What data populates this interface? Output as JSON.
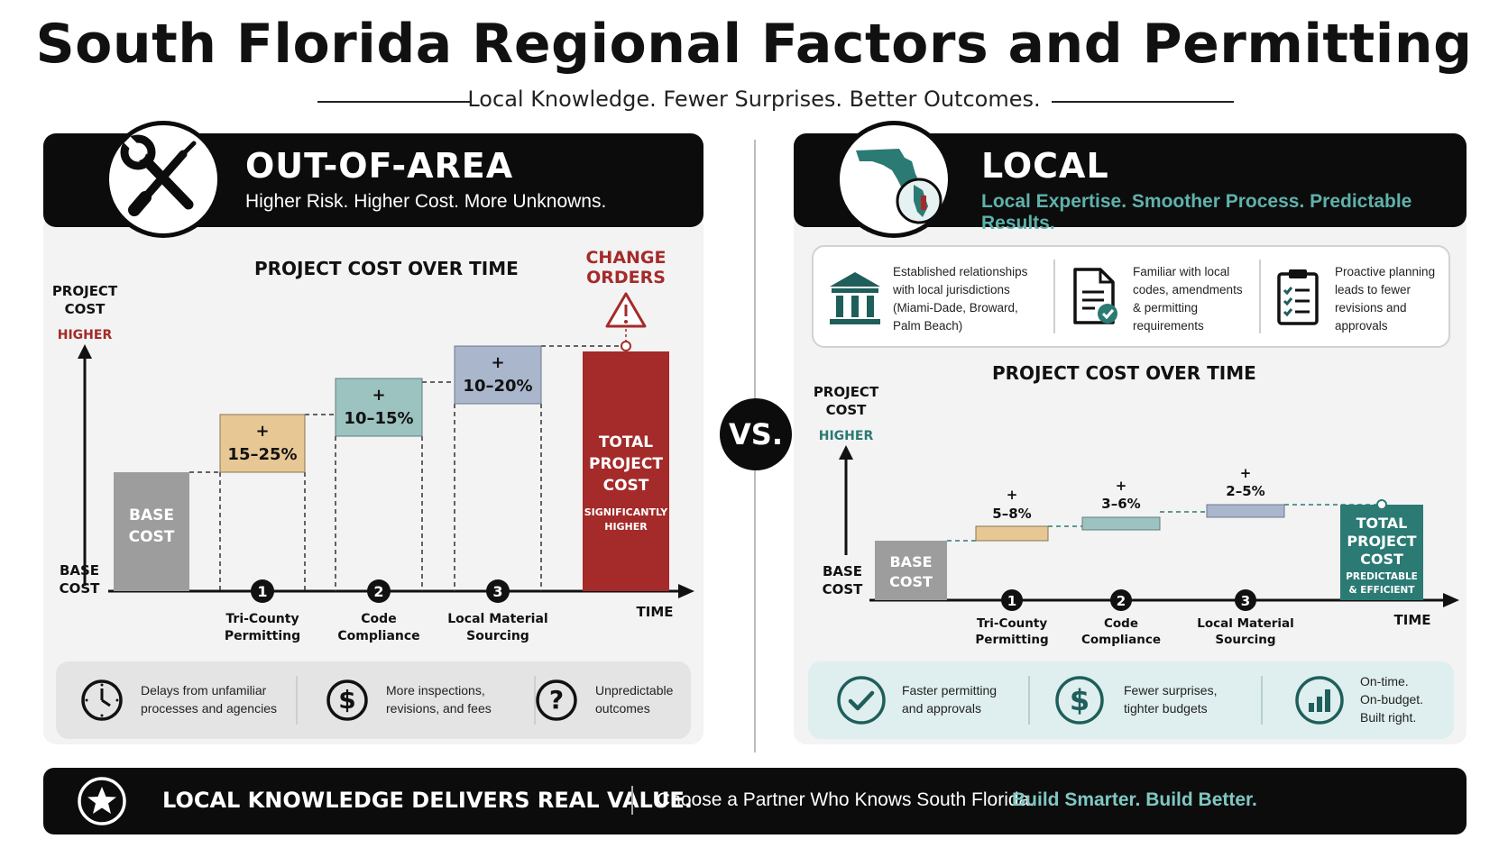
{
  "title": "South Florida Regional Factors and Permitting",
  "subtitle": "Local Knowledge. Fewer Surprises. Better Outcomes.",
  "vs_label": "VS.",
  "colors": {
    "teal": "#2b7a74",
    "red": "#a52a2a",
    "tan": "#e7c894",
    "light_teal": "#9cc3c0",
    "blue_gray": "#a9b6cb",
    "gray": "#9d9d9d"
  },
  "out_of_area": {
    "title": "OUT-OF-AREA",
    "subtitle": "Higher Risk. Higher Cost. More Unknowns.",
    "badge_icon": "wrench-screwdriver-icon",
    "chart": {
      "title": "PROJECT COST OVER TIME",
      "y_label_line1": "PROJECT",
      "y_label_line2": "COST",
      "y_high": "HIGHER",
      "y_base_line1": "BASE",
      "y_base_line2": "COST",
      "x_label": "TIME",
      "base_bar_line1": "BASE",
      "base_bar_line2": "COST",
      "total_bar_line1": "TOTAL",
      "total_bar_line2": "PROJECT",
      "total_bar_line3": "COST",
      "total_bar_note_line1": "SIGNIFICANTLY",
      "total_bar_note_line2": "HIGHER",
      "change_orders_line1": "CHANGE",
      "change_orders_line2": "ORDERS",
      "steps": [
        {
          "num": "1",
          "plus": "+",
          "range": "15–25%",
          "label_line1": "Tri-County",
          "label_line2": "Permitting"
        },
        {
          "num": "2",
          "plus": "+",
          "range": "10–15%",
          "label_line1": "Code",
          "label_line2": "Compliance"
        },
        {
          "num": "3",
          "plus": "+",
          "range": "10–20%",
          "label_line1": "Local Material",
          "label_line2": "Sourcing"
        }
      ]
    },
    "bottom_items": [
      {
        "icon": "clock-icon",
        "line1": "Delays from unfamiliar",
        "line2": "processes and agencies"
      },
      {
        "icon": "dollar-icon",
        "line1": "More inspections,",
        "line2": "revisions, and fees"
      },
      {
        "icon": "question-icon",
        "line1": "Unpredictable",
        "line2": "outcomes"
      }
    ]
  },
  "local": {
    "title": "LOCAL",
    "subtitle": "Local Expertise. Smoother Process. Predictable Results.",
    "badge_icon": "florida-map-icon",
    "top_items": [
      {
        "icon": "courthouse-icon",
        "line1": "Established relationships",
        "line2": "with local jurisdictions",
        "line3": "(Miami-Dade, Broward,",
        "line4": "Palm Beach)"
      },
      {
        "icon": "document-check-icon",
        "line1": "Familiar with local",
        "line2": "codes, amendments",
        "line3": "& permitting",
        "line4": "requirements"
      },
      {
        "icon": "clipboard-checklist-icon",
        "line1": "Proactive planning",
        "line2": "leads to fewer",
        "line3": "revisions and",
        "line4": "approvals"
      }
    ],
    "chart": {
      "title": "PROJECT COST OVER TIME",
      "y_label_line1": "PROJECT",
      "y_label_line2": "COST",
      "y_high": "HIGHER",
      "y_base_line1": "BASE",
      "y_base_line2": "COST",
      "x_label": "TIME",
      "base_bar_line1": "BASE",
      "base_bar_line2": "COST",
      "total_bar_line1": "TOTAL",
      "total_bar_line2": "PROJECT",
      "total_bar_line3": "COST",
      "total_bar_note_line1": "PREDICTABLE",
      "total_bar_note_line2": "& EFFICIENT",
      "steps": [
        {
          "num": "1",
          "plus": "+",
          "range": "5–8%",
          "label_line1": "Tri-County",
          "label_line2": "Permitting"
        },
        {
          "num": "2",
          "plus": "+",
          "range": "3–6%",
          "label_line1": "Code",
          "label_line2": "Compliance"
        },
        {
          "num": "3",
          "plus": "+",
          "range": "2–5%",
          "label_line1": "Local Material",
          "label_line2": "Sourcing"
        }
      ]
    },
    "bottom_items": [
      {
        "icon": "checkmark-circle-icon",
        "line1": "Faster permitting",
        "line2": "and approvals"
      },
      {
        "icon": "dollar-icon",
        "line1": "Fewer surprises,",
        "line2": "tighter budgets"
      },
      {
        "icon": "bar-chart-icon",
        "line1": "On-time.",
        "line2": "On-budget.",
        "line3": "Built right."
      }
    ]
  },
  "footer": {
    "icon": "star-icon",
    "bold": "LOCAL KNOWLEDGE DELIVERS REAL VALUE.",
    "text": "Choose a Partner Who Knows South Florida.",
    "accent": "Build Smarter. Build Better."
  }
}
